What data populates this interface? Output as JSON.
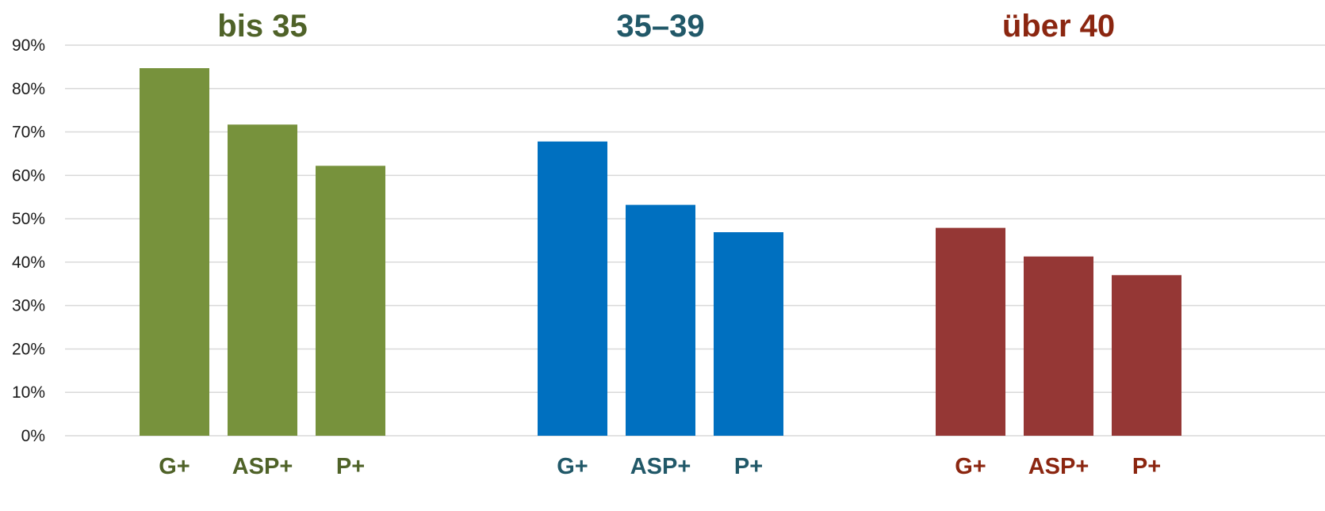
{
  "chart_data": {
    "type": "bar",
    "ylim": [
      0,
      90
    ],
    "yticks": [
      "0%",
      "10%",
      "20%",
      "30%",
      "40%",
      "50%",
      "60%",
      "70%",
      "80%",
      "90%"
    ],
    "grid": true,
    "groups": [
      {
        "title": "bis 35",
        "color": "#77923C",
        "title_color": "#4F6228",
        "categories": [
          "G+",
          "ASP+",
          "P+"
        ],
        "values": [
          84.7,
          71.7,
          62.2
        ]
      },
      {
        "title": "35–39",
        "color": "#0070C0",
        "title_color": "#215868",
        "categories": [
          "G+",
          "ASP+",
          "P+"
        ],
        "values": [
          67.8,
          53.2,
          46.9
        ]
      },
      {
        "title": "über 40",
        "color": "#953735",
        "title_color": "#8B2610",
        "categories": [
          "G+",
          "ASP+",
          "P+"
        ],
        "values": [
          47.9,
          41.3,
          37.0
        ]
      }
    ]
  }
}
